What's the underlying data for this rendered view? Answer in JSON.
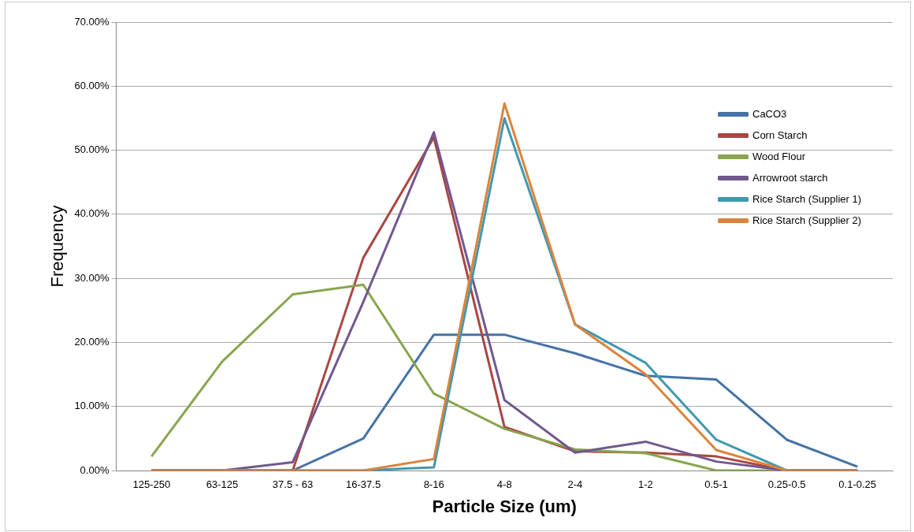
{
  "chart_data": {
    "type": "line",
    "xlabel": "Particle Size (um)",
    "ylabel": "Frequency",
    "categories": [
      "125-250",
      "63-125",
      "37.5 - 63",
      "16-37.5",
      "8-16",
      "4-8",
      "2-4",
      "1-2",
      "0.5-1",
      "0.25-0.5",
      "0.1-0.25"
    ],
    "series": [
      {
        "name": "CaCO3",
        "color": "#4572a7",
        "values": [
          0,
          0,
          0,
          5.0,
          21.2,
          21.2,
          18.3,
          14.8,
          14.2,
          4.8,
          0.6
        ]
      },
      {
        "name": "Corn Starch",
        "color": "#aa4643",
        "values": [
          0,
          0,
          0,
          33.2,
          52.0,
          6.8,
          3.0,
          2.8,
          2.2,
          0,
          0
        ]
      },
      {
        "name": "Wood Flour",
        "color": "#89a54e",
        "values": [
          2.2,
          17.0,
          27.5,
          29.0,
          12.0,
          6.5,
          3.3,
          2.7,
          0,
          0,
          0
        ]
      },
      {
        "name": "Arrowroot starch",
        "color": "#71588f",
        "values": [
          0,
          0,
          1.3,
          26.3,
          52.8,
          11.0,
          2.8,
          4.5,
          1.4,
          0,
          0
        ]
      },
      {
        "name": "Rice Starch (Supplier 1)",
        "color": "#4198af",
        "values": [
          0,
          0,
          0,
          0,
          0.5,
          55.0,
          22.8,
          16.8,
          4.8,
          0,
          0
        ]
      },
      {
        "name": "Rice Starch (Supplier 2)",
        "color": "#db843d",
        "values": [
          0,
          0,
          0,
          0,
          1.8,
          57.3,
          22.8,
          15.0,
          3.2,
          0,
          0
        ]
      }
    ],
    "ylim": [
      0,
      70
    ],
    "yticks": [
      {
        "value": 0,
        "label": "0.00%"
      },
      {
        "value": 10,
        "label": "10.00%"
      },
      {
        "value": 20,
        "label": "20.00%"
      },
      {
        "value": 30,
        "label": "30.00%"
      },
      {
        "value": 40,
        "label": "40.00%"
      },
      {
        "value": 50,
        "label": "50.00%"
      },
      {
        "value": 60,
        "label": "60.00%"
      },
      {
        "value": 70,
        "label": "70.00%"
      }
    ],
    "grid": "y",
    "legend": "right",
    "marker": "none",
    "line_style": "solid"
  }
}
